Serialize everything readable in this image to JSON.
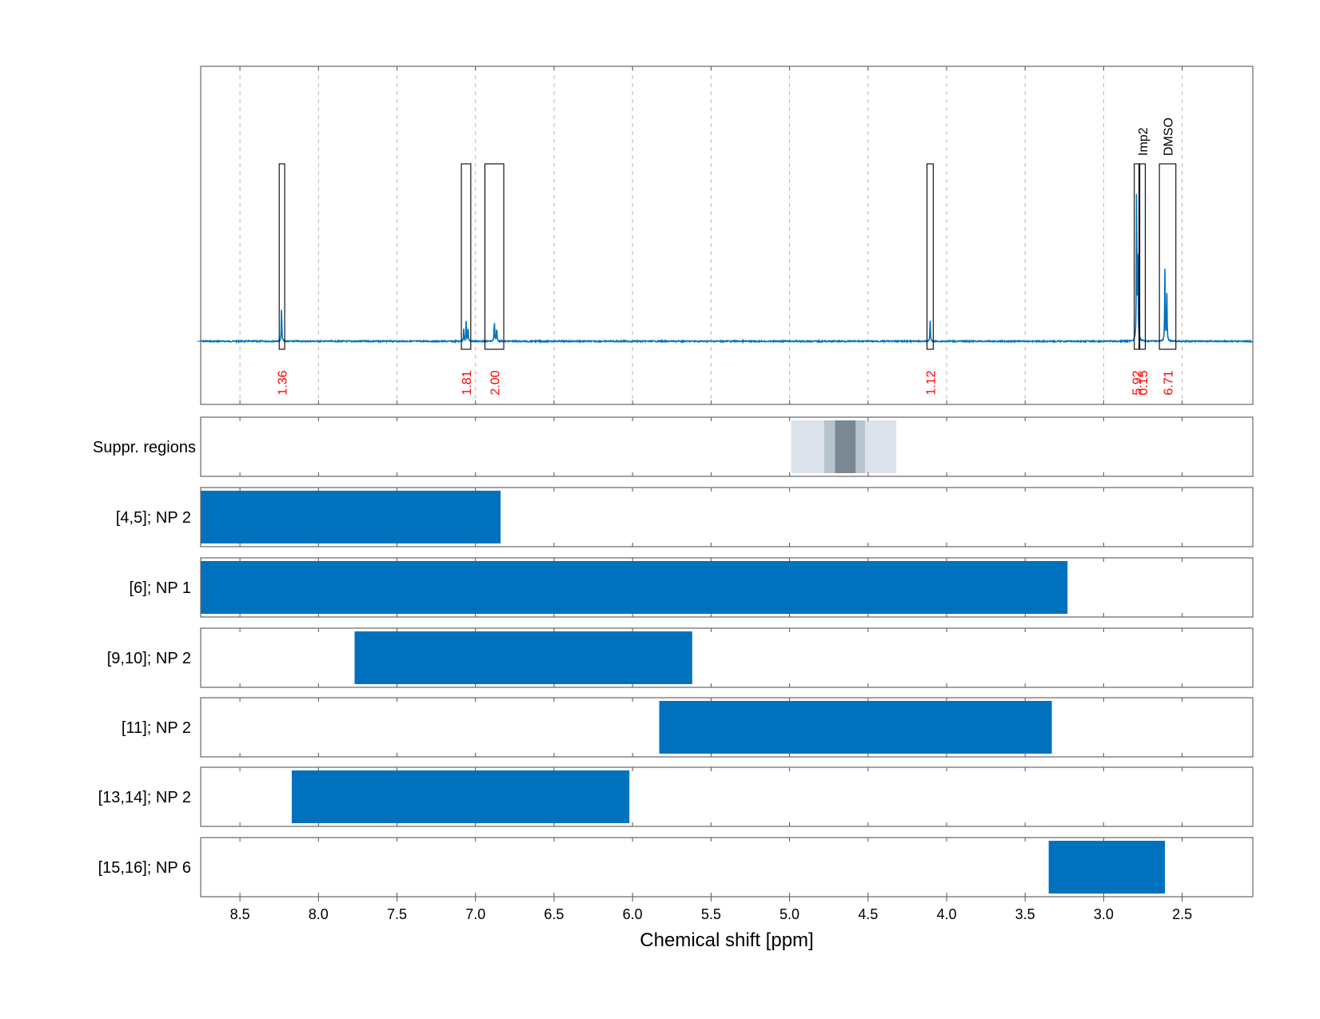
{
  "chart_data": {
    "type": "nmr-spectrum-with-range-bars",
    "xlabel": "Chemical shift [ppm]",
    "xlim": [
      8.75,
      2.05
    ],
    "x_ticks": [
      "8.5",
      "8.0",
      "7.5",
      "7.0",
      "6.5",
      "6.0",
      "5.5",
      "5.0",
      "4.5",
      "4.0",
      "3.5",
      "3.0",
      "2.5"
    ],
    "x_tick_values": [
      8.5,
      8.0,
      7.5,
      7.0,
      6.5,
      6.0,
      5.5,
      5.0,
      4.5,
      4.0,
      3.5,
      3.0,
      2.5
    ],
    "grid": "dashed vertical",
    "spectrum": {
      "color": "#0072BD",
      "peaks": [
        {
          "ppm": 8.235,
          "height": 0.21
        },
        {
          "ppm": 7.075,
          "height": 0.07
        },
        {
          "ppm": 7.06,
          "height": 0.11
        },
        {
          "ppm": 7.048,
          "height": 0.09
        },
        {
          "ppm": 6.88,
          "height": 0.13
        },
        {
          "ppm": 6.865,
          "height": 0.09
        },
        {
          "ppm": 4.105,
          "height": 0.13
        },
        {
          "ppm": 2.79,
          "height": 0.95
        },
        {
          "ppm": 2.782,
          "height": 0.6
        },
        {
          "ppm": 2.61,
          "height": 0.4
        },
        {
          "ppm": 2.598,
          "height": 0.3
        }
      ]
    },
    "integration_regions": [
      {
        "from": 8.25,
        "to": 8.215,
        "label": "1.36",
        "name": ""
      },
      {
        "from": 7.09,
        "to": 7.03,
        "label": "1.81",
        "name": ""
      },
      {
        "from": 6.94,
        "to": 6.82,
        "label": "2.00",
        "name": ""
      },
      {
        "from": 4.125,
        "to": 4.085,
        "label": "1.12",
        "name": ""
      },
      {
        "from": 2.805,
        "to": 2.775,
        "label": "5.92",
        "name": ""
      },
      {
        "from": 2.77,
        "to": 2.735,
        "label": "0.15",
        "name": "Imp2"
      },
      {
        "from": 2.645,
        "to": 2.54,
        "label": "6.71",
        "name": "DMSO"
      }
    ],
    "integral_label_color": "#FF0000",
    "suppressed_regions": {
      "label": "Suppr. regions",
      "bands": [
        {
          "from": 4.99,
          "to": 4.32,
          "shade": "#DCE3EA"
        },
        {
          "from": 4.78,
          "to": 4.52,
          "shade": "#B7C3CD"
        },
        {
          "from": 4.71,
          "to": 4.58,
          "shade": "#7A8893"
        }
      ]
    },
    "range_bars": [
      {
        "label": "[4,5]; NP 2",
        "from": 8.75,
        "to": 6.84
      },
      {
        "label": "[6]; NP 1",
        "from": 8.75,
        "to": 3.23
      },
      {
        "label": "[9,10]; NP 2",
        "from": 7.77,
        "to": 5.62
      },
      {
        "label": "[11]; NP 2",
        "from": 5.83,
        "to": 3.33
      },
      {
        "label": "[13,14]; NP 2",
        "from": 8.17,
        "to": 6.02
      },
      {
        "label": "[15,16]; NP 6",
        "from": 3.35,
        "to": 2.61
      }
    ],
    "bar_color": "#0072BD"
  }
}
